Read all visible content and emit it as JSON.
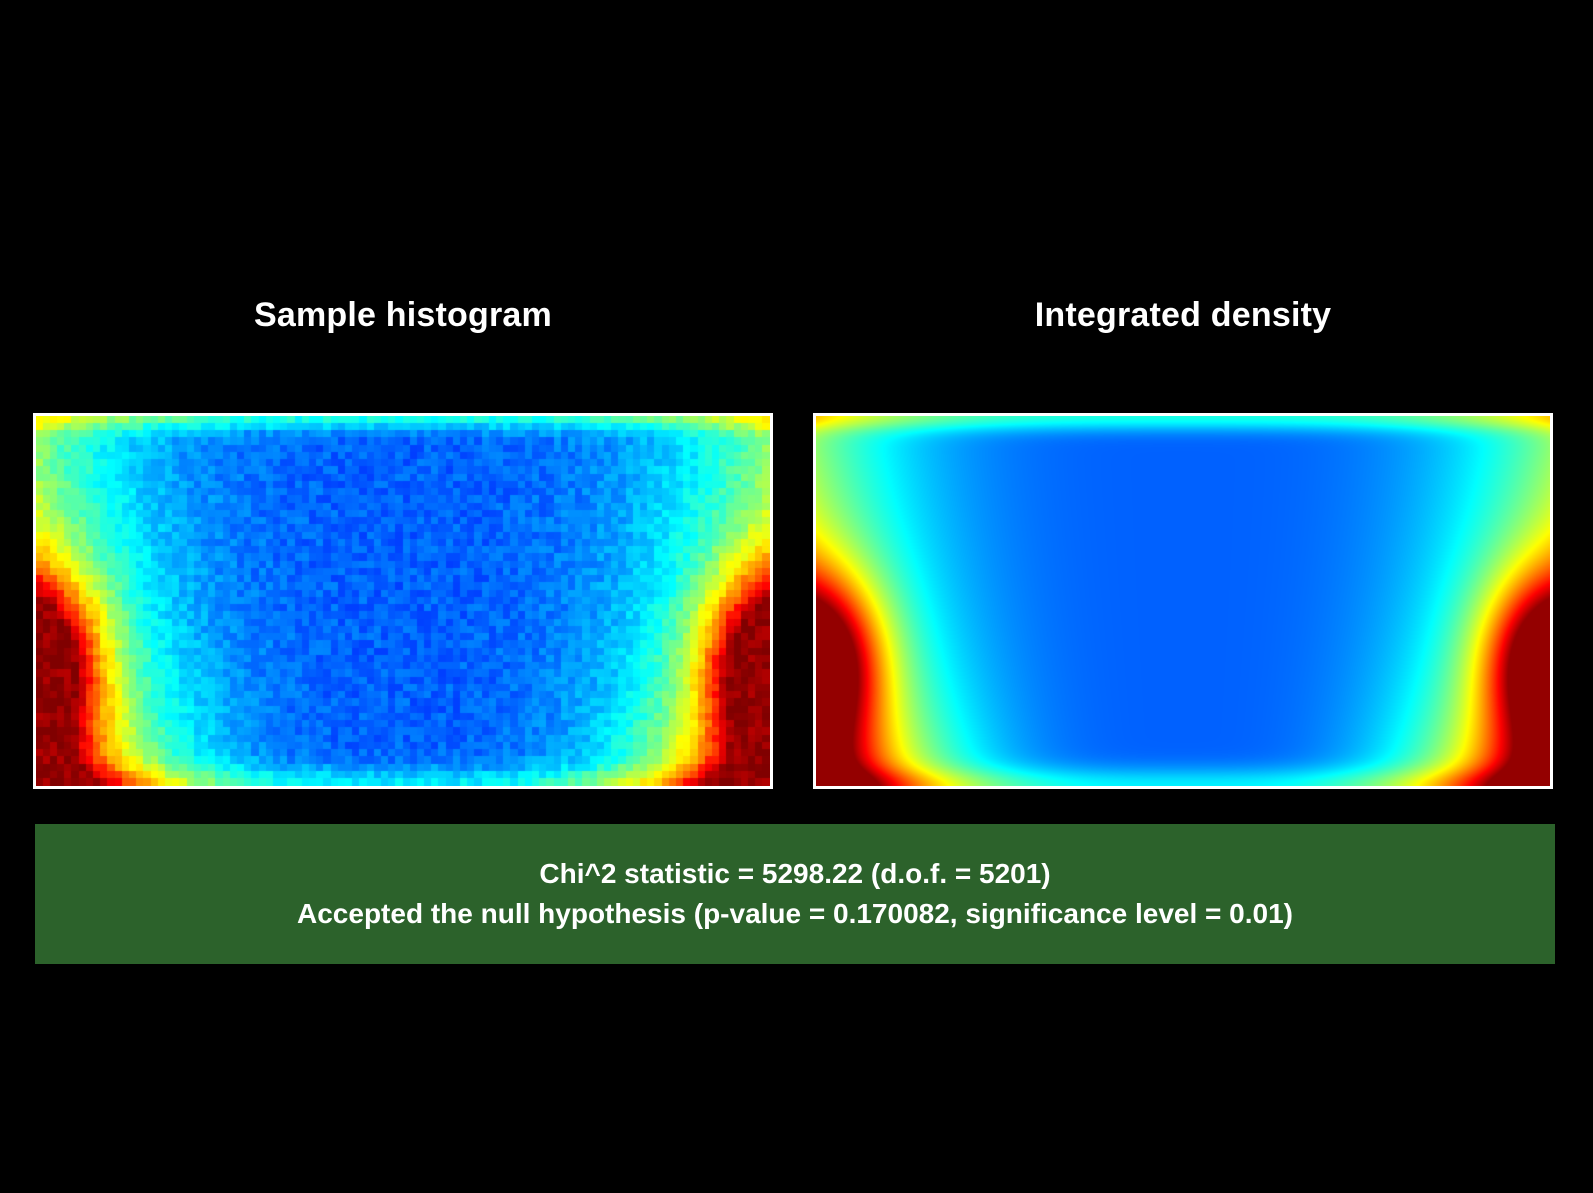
{
  "chart_data": [
    {
      "type": "heatmap",
      "title": "Sample histogram",
      "grid_cols": 102,
      "grid_rows": 51,
      "colormap": "jet",
      "noisy": true,
      "grid": false,
      "legend": "none"
    },
    {
      "type": "heatmap",
      "title": "Integrated density",
      "grid_cols": 102,
      "grid_rows": 51,
      "colormap": "jet",
      "noisy": false,
      "grid": false,
      "legend": "none"
    }
  ],
  "result": {
    "line1": "Chi^2 statistic = 5298.22 (d.o.f. = 5201)",
    "line2": "Accepted the null hypothesis (p-value = 0.170082, significance level = 0.01)",
    "chi2": 5298.22,
    "dof": 5201,
    "p_value": 0.170082,
    "significance_level": 0.01,
    "accepted": true
  },
  "colors": {
    "background": "#000000",
    "result_box": "#2c622b",
    "text": "#ffffff",
    "frame": "#ffffff"
  }
}
